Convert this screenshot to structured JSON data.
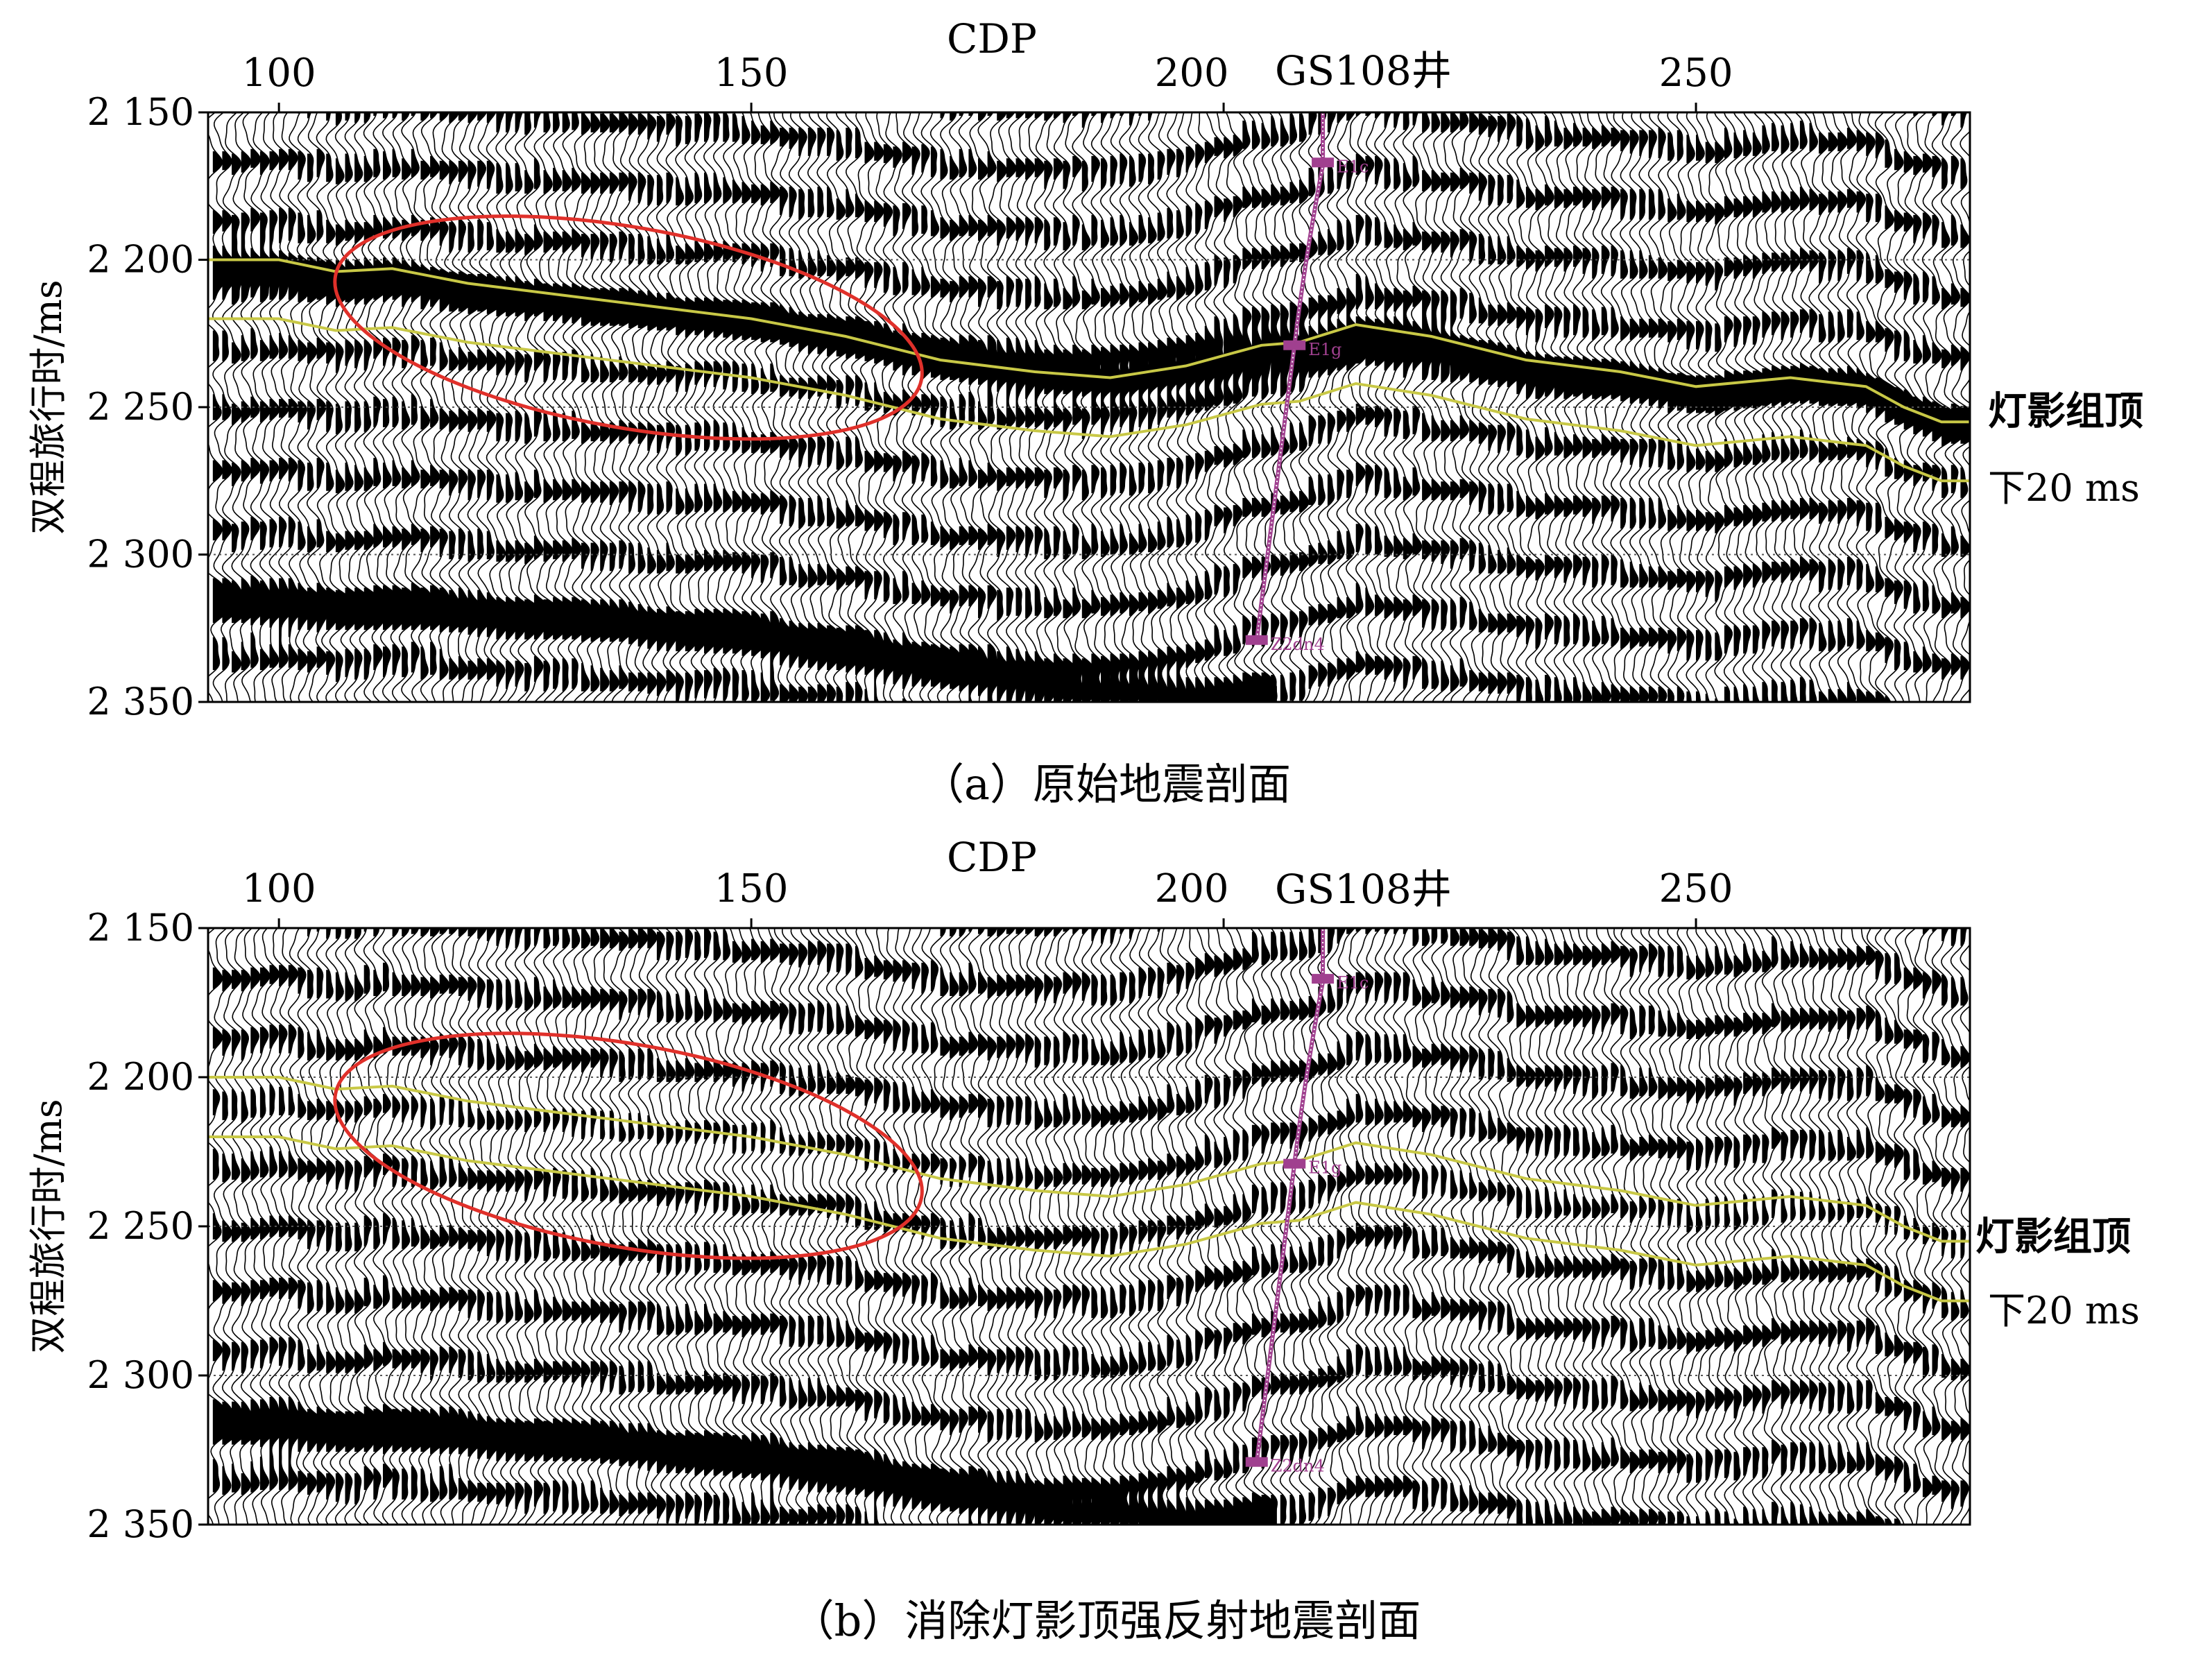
{
  "figure": {
    "panels": [
      {
        "id": "a",
        "caption": "（a）原始地震剖面",
        "x_axis_title": "CDP",
        "x_ticks": [
          100,
          150,
          200,
          250
        ],
        "y_axis_title": "双程旅行时/ms",
        "y_tick_labels": [
          "2 150",
          "2 200",
          "2 250",
          "2 300",
          "2 350"
        ],
        "y_ticks": [
          2150,
          2200,
          2250,
          2300,
          2350
        ],
        "well_label": "GS108井",
        "well_markers": [
          "E1c",
          "E1g",
          "Z2dn4"
        ],
        "horizon_labels": [
          "灯影组顶",
          "下20 ms"
        ],
        "strong_reflection": true
      },
      {
        "id": "b",
        "caption": "（b）消除灯影顶强反射地震剖面",
        "x_axis_title": "CDP",
        "x_ticks": [
          100,
          150,
          200,
          250
        ],
        "y_axis_title": "双程旅行时/ms",
        "y_tick_labels": [
          "2 150",
          "2 200",
          "2 250",
          "2 300",
          "2 350"
        ],
        "y_ticks": [
          2150,
          2200,
          2250,
          2300,
          2350
        ],
        "well_label": "GS108井",
        "well_markers": [
          "E1c",
          "E1g",
          "Z2dn4"
        ],
        "horizon_labels": [
          "灯影组顶",
          "下20 ms"
        ],
        "strong_reflection": false
      }
    ],
    "axes": {
      "cdp_range": [
        92.5,
        279
      ],
      "time_range": [
        2150,
        2350
      ]
    },
    "colors": {
      "horizon": "#c8c846",
      "ellipse": "#e0302a",
      "well": "#a0408f",
      "traces": "#000000"
    },
    "horizon_top": {
      "cdp": [
        92,
        100,
        106,
        112,
        120,
        130,
        140,
        150,
        160,
        170,
        180,
        188,
        196,
        204,
        208,
        214,
        222,
        232,
        242,
        250,
        260,
        268,
        272,
        276,
        279
      ],
      "time": [
        2200,
        2200,
        2204,
        2203,
        2208,
        2212,
        2216,
        2220,
        2226,
        2234,
        2238,
        2240,
        2236,
        2229,
        2228,
        2222,
        2226,
        2234,
        2238,
        2243,
        2240,
        2243,
        2250,
        2255,
        2255
      ]
    },
    "horizon_bottom": {
      "cdp": [
        92,
        100,
        106,
        112,
        120,
        130,
        140,
        150,
        160,
        170,
        180,
        188,
        196,
        204,
        208,
        214,
        222,
        232,
        242,
        250,
        260,
        268,
        272,
        276,
        279
      ],
      "time": [
        2220,
        2220,
        2224,
        2223,
        2228,
        2232,
        2236,
        2240,
        2246,
        2254,
        2258,
        2260,
        2256,
        2249,
        2248,
        2242,
        2246,
        2254,
        2258,
        2263,
        2260,
        2263,
        2270,
        2275,
        2275
      ]
    },
    "ellipse": {
      "cdp_center": 137,
      "time_center": 2223,
      "cdp_radius": 31.5,
      "time_radius": 34,
      "tilt_deg": 10
    },
    "well": {
      "top_cdp": 210.5,
      "bottom_cdp": 203.5,
      "marker_cdp": [
        210.5,
        207.5,
        203.5
      ],
      "marker_time": [
        2167,
        2229,
        2329
      ]
    }
  }
}
